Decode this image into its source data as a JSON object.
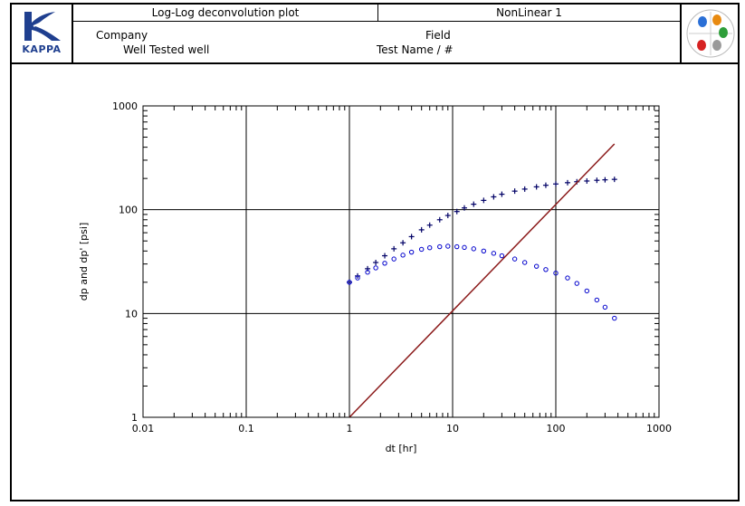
{
  "header": {
    "logo_text": "KAPPA",
    "plot_title": "Log-Log deconvolution plot",
    "model_name": "NonLinear 1",
    "company_label": "Company",
    "field_label": "Field",
    "well_label": "Well",
    "well_value": "Tested well",
    "test_label": "Test Name / #"
  },
  "colors": {
    "brand": "#1f3f8f",
    "pressure": "#000066",
    "derivative": "#0000cc",
    "unit_slope": "#8b1a1a"
  },
  "icons": [
    "kappa-logo-icon",
    "colored-drops-icon"
  ],
  "chart_data": {
    "type": "scatter",
    "xlabel": "dt [hr]",
    "ylabel": "dp and dp'  [psi]",
    "xscale": "log",
    "yscale": "log",
    "xlim": [
      0.01,
      1000
    ],
    "ylim": [
      1,
      1000
    ],
    "x_ticks": [
      "0.01",
      "0.1",
      "1",
      "10",
      "100",
      "1000"
    ],
    "y_ticks": [
      "1",
      "10",
      "100",
      "1000"
    ],
    "grid": true,
    "series": [
      {
        "marker": "plus",
        "x": [
          1.0,
          1.2,
          1.5,
          1.8,
          2.2,
          2.7,
          3.3,
          4.0,
          5.0,
          6.0,
          7.5,
          9.0,
          11,
          13,
          16,
          20,
          25,
          30,
          40,
          50,
          65,
          80,
          100,
          130,
          160,
          200,
          250,
          300,
          370
        ],
        "y": [
          20,
          23,
          27,
          31,
          36,
          42,
          48,
          55,
          64,
          71,
          80,
          88,
          96,
          104,
          113,
          123,
          133,
          141,
          151,
          158,
          166,
          172,
          177,
          182,
          186,
          189,
          192,
          194,
          196
        ]
      },
      {
        "marker": "circle",
        "x": [
          1.0,
          1.2,
          1.5,
          1.8,
          2.2,
          2.7,
          3.3,
          4.0,
          5.0,
          6.0,
          7.5,
          9.0,
          11,
          13,
          16,
          20,
          25,
          30,
          40,
          50,
          65,
          80,
          100,
          130,
          160,
          200,
          250,
          300,
          370
        ],
        "y": [
          20,
          22,
          25,
          27.5,
          30.5,
          33.5,
          36.5,
          39,
          41.5,
          43,
          44,
          44.5,
          44,
          43.3,
          42,
          40,
          38,
          36,
          33.5,
          31,
          28.5,
          26.5,
          24.5,
          22,
          19.5,
          16.5,
          13.5,
          11.5,
          9
        ]
      },
      {
        "marker": "line",
        "x": [
          1,
          370
        ],
        "y": [
          1,
          430
        ]
      }
    ]
  }
}
